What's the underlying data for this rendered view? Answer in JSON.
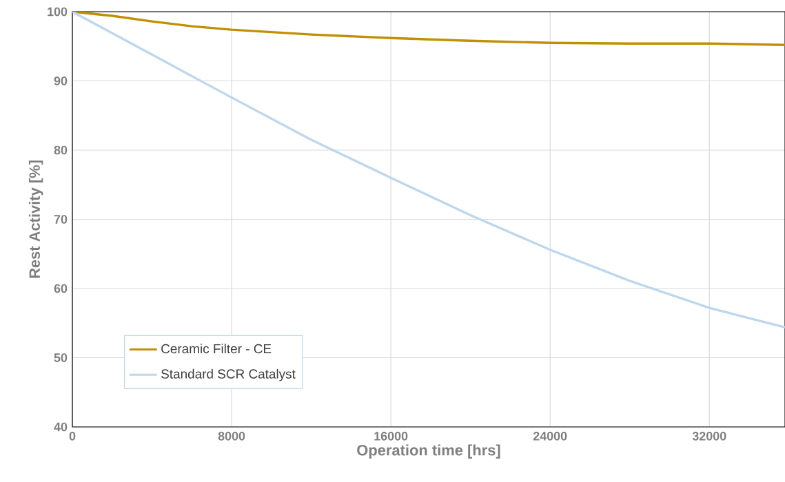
{
  "chart_data": {
    "type": "line",
    "xlabel": "Operation time  [hrs]",
    "ylabel": "Rest Activity  [%]",
    "xlim": [
      0,
      35800
    ],
    "ylim": [
      40,
      100
    ],
    "xticks": [
      0,
      8000,
      16000,
      24000,
      32000
    ],
    "yticks": [
      40,
      50,
      60,
      70,
      80,
      90,
      100
    ],
    "grid": true,
    "legend": "bottom left",
    "marker": "none",
    "line_style": "solid",
    "series": [
      {
        "name": "Ceramic Filter - CE",
        "color": "#c09000",
        "x": [
          0,
          2000,
          4000,
          6000,
          8000,
          12000,
          16000,
          20000,
          24000,
          28000,
          32000,
          35800
        ],
        "values": [
          100,
          99.4,
          98.6,
          97.9,
          97.4,
          96.7,
          96.2,
          95.8,
          95.5,
          95.4,
          95.4,
          95.2
        ]
      },
      {
        "name": "Standard SCR Catalyst",
        "color": "#bdd7ee",
        "x": [
          0,
          4000,
          8000,
          12000,
          16000,
          20000,
          24000,
          28000,
          32000,
          34000,
          35800
        ],
        "values": [
          100,
          93.8,
          87.6,
          81.5,
          76.0,
          70.6,
          65.6,
          61.1,
          57.2,
          55.7,
          54.4
        ]
      }
    ]
  }
}
